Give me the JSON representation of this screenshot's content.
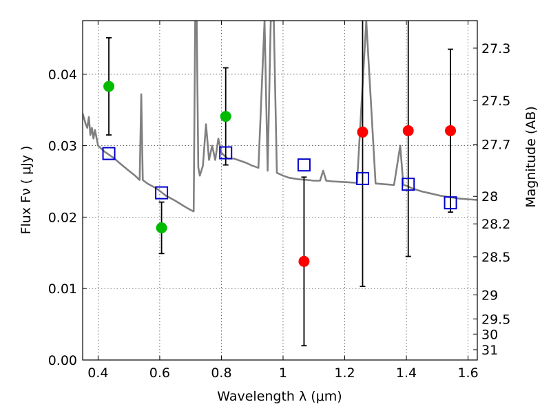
{
  "chart_data": {
    "type": "scatter",
    "xlabel": "Wavelength  λ (μm)",
    "ylabel": "Flux  Fν  ( μJy )",
    "y2label": "Magnitude (AB)",
    "xlim": [
      0.35,
      1.63
    ],
    "ylim": [
      0.0,
      0.0475
    ],
    "x_ticks": [
      0.4,
      0.6,
      0.8,
      1.0,
      1.2,
      1.4,
      1.6
    ],
    "x_tick_labels": [
      "0.4",
      "0.6",
      "0.8",
      "1",
      "1.2",
      "1.4",
      "1.6"
    ],
    "y_ticks": [
      0.0,
      0.01,
      0.02,
      0.03,
      0.04
    ],
    "y_tick_labels": [
      "0.00",
      "0.01",
      "0.02",
      "0.03",
      "0.04"
    ],
    "y2_tick_labels": [
      "27.3",
      "27.5",
      "27.7",
      "28",
      "28.2",
      "28.5",
      "29",
      "29.5",
      "30",
      "31"
    ],
    "grid": true,
    "colors": {
      "spectrum": "#808080",
      "detections": "#00bb00",
      "upper_limits": "#ff0000",
      "model_photometry": "#0000cc",
      "errorbars": "#000000"
    },
    "series": [
      {
        "marker": "circle",
        "color": "#00bb00",
        "x": [
          0.435,
          0.606,
          0.814
        ],
        "y": [
          0.0383,
          0.0185,
          0.0341
        ],
        "yerr_low": [
          0.0068,
          0.0036,
          0.0068
        ],
        "yerr_high": [
          0.0068,
          0.0036,
          0.0068
        ]
      },
      {
        "marker": "circle",
        "color": "#ff0000",
        "x": [
          1.068,
          1.258,
          1.406,
          1.543
        ],
        "y": [
          0.0138,
          0.0319,
          0.0321,
          0.0321
        ],
        "yerr_low": [
          0.0118,
          0.0216,
          0.0176,
          0.0114
        ],
        "yerr_high": [
          0.0118,
          0.0216,
          0.0176,
          0.0114
        ]
      },
      {
        "marker": "open-square",
        "color": "#0000cc",
        "x": [
          0.435,
          0.606,
          0.814,
          1.068,
          1.258,
          1.406,
          1.543
        ],
        "y": [
          0.0289,
          0.0234,
          0.029,
          0.0273,
          0.0254,
          0.0246,
          0.022
        ]
      },
      {
        "marker": "line",
        "color": "#808080",
        "x": [
          0.35,
          0.36,
          0.365,
          0.37,
          0.375,
          0.38,
          0.385,
          0.39,
          0.4,
          0.42,
          0.45,
          0.48,
          0.5,
          0.52,
          0.535,
          0.54,
          0.545,
          0.56,
          0.59,
          0.62,
          0.65,
          0.68,
          0.7,
          0.71,
          0.715,
          0.72,
          0.725,
          0.73,
          0.74,
          0.75,
          0.76,
          0.77,
          0.78,
          0.79,
          0.8,
          0.82,
          0.84,
          0.86,
          0.88,
          0.9,
          0.92,
          0.94,
          0.95,
          0.96,
          0.97,
          0.98,
          1.0,
          1.02,
          1.05,
          1.08,
          1.1,
          1.12,
          1.13,
          1.14,
          1.16,
          1.2,
          1.24,
          1.27,
          1.3,
          1.33,
          1.36,
          1.38,
          1.39,
          1.4,
          1.42,
          1.45,
          1.48,
          1.51,
          1.54,
          1.57,
          1.6,
          1.63
        ],
        "y": [
          0.0345,
          0.033,
          0.0325,
          0.034,
          0.0315,
          0.0325,
          0.031,
          0.0322,
          0.03,
          0.0292,
          0.0283,
          0.0272,
          0.0265,
          0.0258,
          0.0252,
          0.0372,
          0.0252,
          0.0247,
          0.024,
          0.023,
          0.0223,
          0.0215,
          0.021,
          0.0208,
          0.0475,
          0.0475,
          0.027,
          0.0258,
          0.0272,
          0.033,
          0.028,
          0.03,
          0.028,
          0.031,
          0.029,
          0.0282,
          0.0282,
          0.0279,
          0.0276,
          0.0272,
          0.0269,
          0.0475,
          0.0265,
          0.0475,
          0.0475,
          0.0262,
          0.0258,
          0.0255,
          0.0253,
          0.0252,
          0.0251,
          0.0251,
          0.0265,
          0.0251,
          0.025,
          0.0249,
          0.0248,
          0.0475,
          0.0247,
          0.0246,
          0.0245,
          0.03,
          0.0245,
          0.0244,
          0.024,
          0.0236,
          0.0233,
          0.023,
          0.0228,
          0.0226,
          0.0225,
          0.0224
        ]
      }
    ]
  }
}
